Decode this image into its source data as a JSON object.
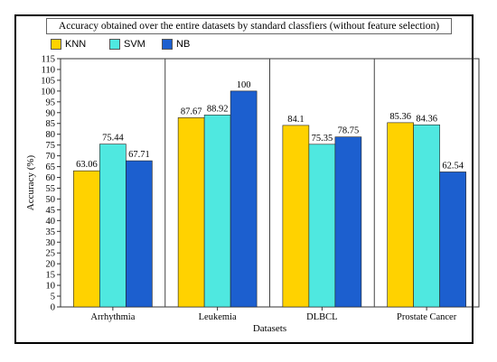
{
  "chart_data": {
    "type": "bar",
    "title": "Accuracy obtained over the entire datasets by standard classfiers (without feature selection)",
    "xlabel": "Datasets",
    "ylabel": "Accuracy (%)",
    "ylim": [
      0,
      115
    ],
    "ytick_step": 5,
    "categories": [
      "Arrhythmia",
      "Leukemia",
      "DLBCL",
      "Prostate Cancer"
    ],
    "series": [
      {
        "name": "KNN",
        "color": "#ffd200",
        "values": [
          63.06,
          87.67,
          84.1,
          85.36
        ],
        "labels": [
          "63.06",
          "87.67",
          "84.1",
          "85.36"
        ]
      },
      {
        "name": "SVM",
        "color": "#4fe8e0",
        "values": [
          75.44,
          88.92,
          75.35,
          84.36
        ],
        "labels": [
          "75.44",
          "88.92",
          "75.35",
          "84.36"
        ]
      },
      {
        "name": "NB",
        "color": "#1c5fcf",
        "values": [
          67.71,
          100,
          78.75,
          62.54
        ],
        "labels": [
          "67.71",
          "100",
          "78.75",
          "62.54"
        ]
      }
    ],
    "grid": "vertical separators between categories",
    "legend_position": "top-left"
  }
}
